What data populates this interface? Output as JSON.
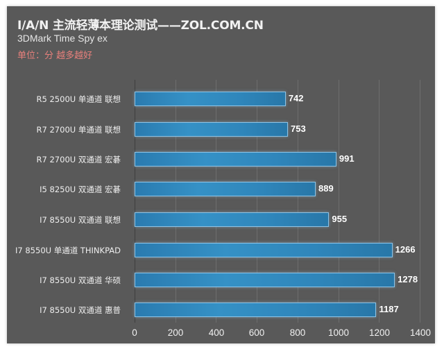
{
  "header": {
    "title": "I/A/N 主流轻薄本理论测试——ZOL.COM.CN",
    "subtitle": "3DMark Time Spy ex",
    "unit": "单位：分 越多越好"
  },
  "colors": {
    "background": "#595959",
    "bar": "#2f86bb",
    "bar_border": "#8cc3e6",
    "unit_text": "#e8807c",
    "grid": "#6e6e6e"
  },
  "chart_data": {
    "type": "bar",
    "orientation": "horizontal",
    "title": "I/A/N 主流轻薄本理论测试——ZOL.COM.CN",
    "subtitle": "3DMark Time Spy ex",
    "annotation": "单位：分 越多越好",
    "xlabel": "",
    "ylabel": "",
    "xlim": [
      0,
      1400
    ],
    "x_ticks": [
      "0",
      "200",
      "400",
      "600",
      "800",
      "1000",
      "1200",
      "1400"
    ],
    "grid": true,
    "legend": "none",
    "categories": [
      "R5 2500U 单通道 联想",
      "R7 2700U 单通道 联想",
      "R7 2700U 双通道 宏碁",
      "I5 8250U 双通道 宏碁",
      "I7 8550U 双通道 联想",
      "I7 8550U 单通道 THINKPAD",
      "I7 8550U 双通道 华硕",
      "I7 8550U 双通道 惠普"
    ],
    "values": [
      742,
      753,
      991,
      889,
      955,
      1266,
      1278,
      1187
    ],
    "value_labels": [
      "742",
      "753",
      "991",
      "889",
      "955",
      "1266",
      "1278",
      "1187"
    ]
  }
}
